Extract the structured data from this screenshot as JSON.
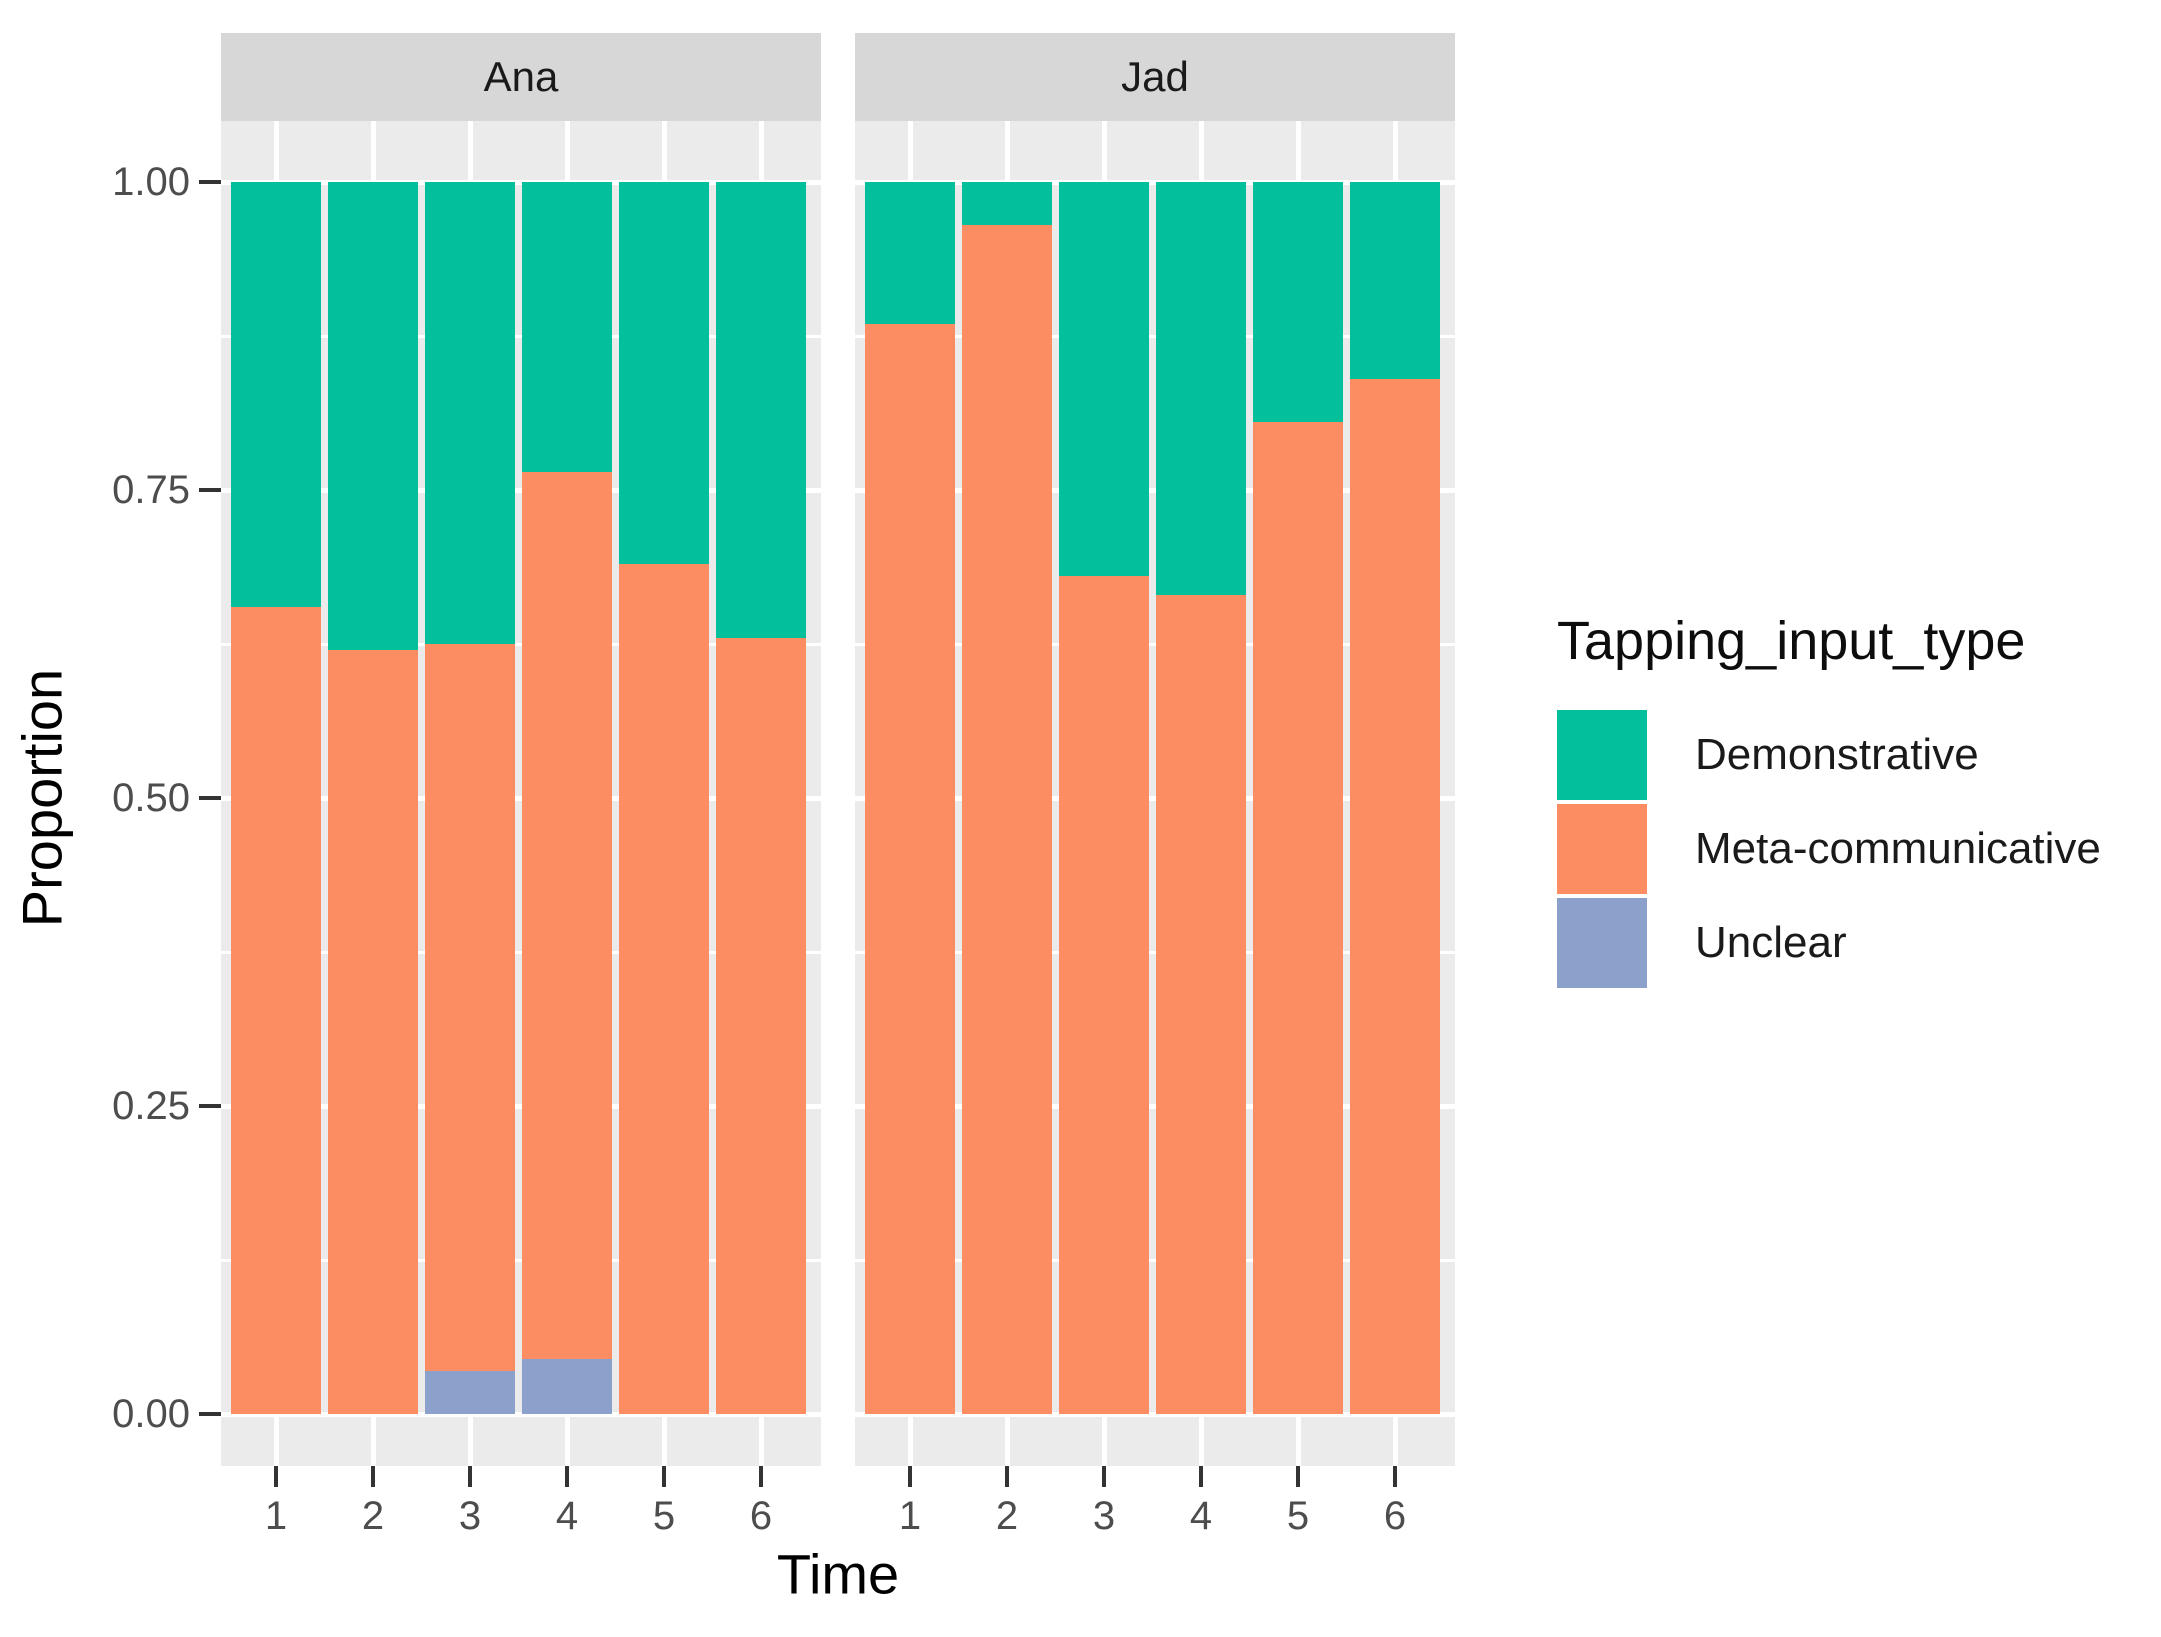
{
  "chart_data": {
    "type": "bar",
    "stacked": true,
    "normalized": true,
    "title": "",
    "xlabel": "Time",
    "ylabel": "Proportion",
    "ylim": [
      0,
      1
    ],
    "grid": true,
    "y_ticks": [
      {
        "value": 1.0,
        "label": "1.00"
      },
      {
        "value": 0.75,
        "label": "0.75"
      },
      {
        "value": 0.5,
        "label": "0.50"
      },
      {
        "value": 0.25,
        "label": "0.25"
      },
      {
        "value": 0.0,
        "label": "0.00"
      }
    ],
    "y_minor_ticks": [
      0.875,
      0.625,
      0.375,
      0.125
    ],
    "categories": [
      "1",
      "2",
      "3",
      "4",
      "5",
      "6"
    ],
    "stack_order_bottom_to_top": [
      "Unclear",
      "Meta-communicative",
      "Demonstrative"
    ],
    "colors": {
      "Demonstrative": "#03BF9C",
      "Meta-communicative": "#FC8D62",
      "Unclear": "#8BA0CB"
    },
    "panel_background": "#EBEBEB",
    "strip_background": "#D7D7D7",
    "gridline_color": "#FFFFFF",
    "facets": [
      {
        "label": "Ana",
        "series": [
          {
            "name": "Unclear",
            "values": [
              0,
              0,
              0.035,
              0.045,
              0,
              0
            ]
          },
          {
            "name": "Meta-communicative",
            "values": [
              0.655,
              0.62,
              0.59,
              0.72,
              0.69,
              0.63
            ]
          },
          {
            "name": "Demonstrative",
            "values": [
              0.345,
              0.38,
              0.375,
              0.235,
              0.31,
              0.37
            ]
          }
        ]
      },
      {
        "label": "Jad",
        "series": [
          {
            "name": "Unclear",
            "values": [
              0,
              0,
              0,
              0,
              0,
              0
            ]
          },
          {
            "name": "Meta-communicative",
            "values": [
              0.885,
              0.965,
              0.68,
              0.665,
              0.805,
              0.84
            ]
          },
          {
            "name": "Demonstrative",
            "values": [
              0.115,
              0.035,
              0.32,
              0.335,
              0.195,
              0.16
            ]
          }
        ]
      }
    ],
    "legend": {
      "title": "Tapping_input_type",
      "position": "right",
      "entries": [
        {
          "label": "Demonstrative",
          "color": "#03BF9C"
        },
        {
          "label": "Meta-communicative",
          "color": "#FC8D62"
        },
        {
          "label": "Unclear",
          "color": "#8BA0CB"
        }
      ]
    }
  }
}
